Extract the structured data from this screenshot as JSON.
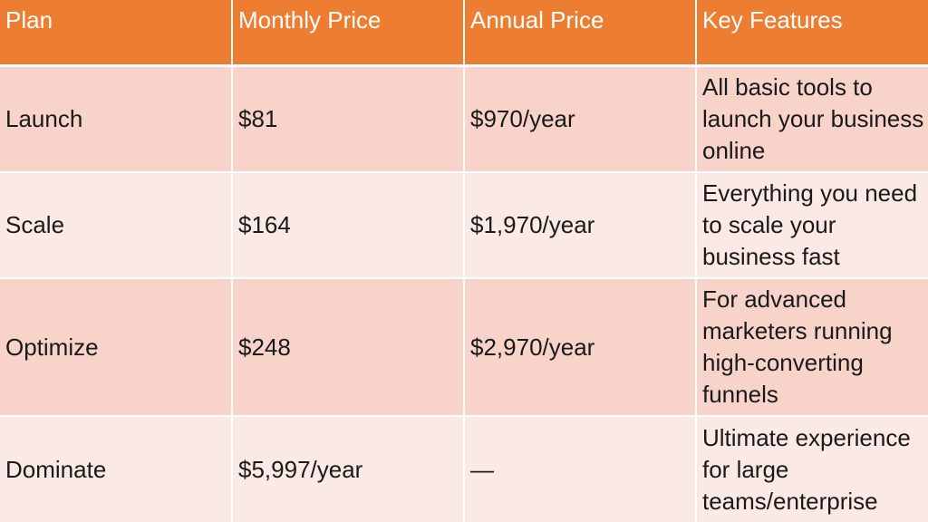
{
  "table": {
    "columns": [
      "Plan",
      "Monthly Price",
      "Annual Price",
      "Key Features"
    ],
    "rows": [
      {
        "plan": "Launch",
        "monthly": "$81",
        "annual": "$970/year",
        "features": "All basic tools to launch your business online"
      },
      {
        "plan": "Scale",
        "monthly": "$164",
        "annual": "$1,970/year",
        "features": "Everything you need to scale your business fast"
      },
      {
        "plan": "Optimize",
        "monthly": "$248",
        "annual": "$2,970/year",
        "features": "For advanced marketers running high-converting funnels"
      },
      {
        "plan": "Dominate",
        "monthly": "$5,997/year",
        "annual": "—",
        "features": "Ultimate experience for large teams/enterprise"
      }
    ]
  },
  "colors": {
    "header_bg": "#ed7d31",
    "row_odd_bg": "#f8d3ca",
    "row_even_bg": "#fbe9e5",
    "header_text": "#ffffff"
  }
}
